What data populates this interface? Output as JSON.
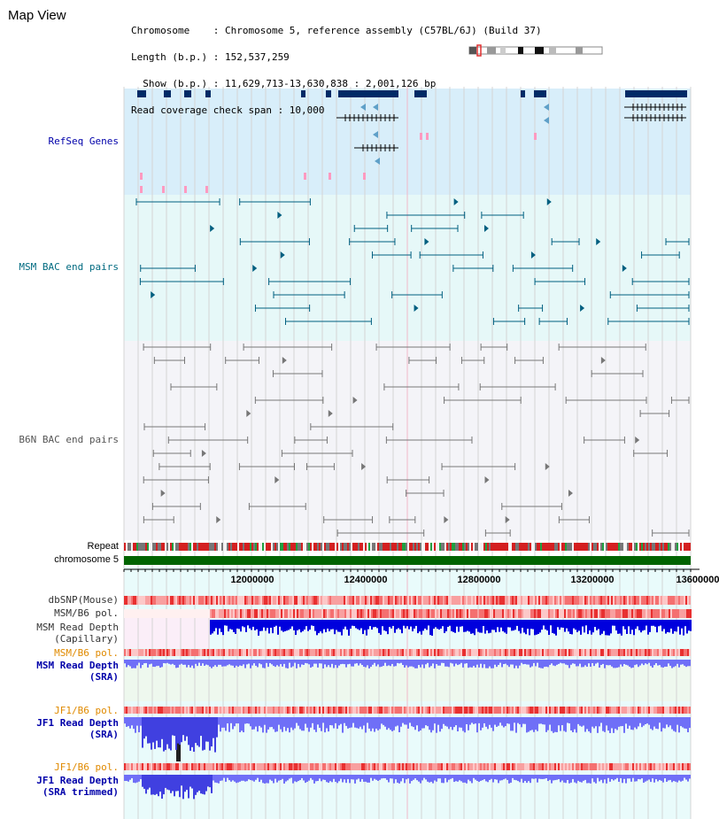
{
  "view_title": "Map View",
  "info_lines": [
    "Chromosome    : Chromosome 5, reference assembly (C57BL/6J) (Build 37)",
    "Length (b.p.) : 152,537,259",
    "  Show (b.p.) : 11,629,713-13,630,838 : 2,001,126 bp",
    "Read coverage check span : 10,000"
  ],
  "tracks": {
    "refseq": "RefSeq Genes",
    "msm_bac": "MSM BAC end pairs",
    "b6n_bac": "B6N BAC end pairs",
    "repeat": "Repeat",
    "chromosome": "chromosome 5",
    "dbsnp": "dbSNP(Mouse)",
    "msm_b6_pol": "MSM/B6 pol.",
    "msm_depth_cap": "MSM Read Depth\n(Capillary)",
    "msm_b6_pol_sra": "MSM/B6 pol.",
    "msm_depth_sra": "MSM Read Depth\n(SRA)",
    "jf1_b6_pol": "JF1/B6 pol.",
    "jf1_depth_sra": "JF1 Read Depth\n(SRA)",
    "jf1_b6_pol_trim": "JF1/B6 pol.",
    "jf1_depth_trim": "JF1 Read Depth\n(SRA trimmed)"
  },
  "axis": {
    "ticks": [
      "12000000",
      "12400000",
      "12800000",
      "13200000",
      "13600000"
    ]
  },
  "colors": {
    "refseq_bg": "#d8eefa",
    "msm_bg": "#e6f8f8",
    "b6n_bg": "#f4f4f8",
    "gene": "#002a66",
    "msm_pair": "#005f80",
    "b6n_pair": "#777777",
    "chromosome": "#006400",
    "depth": "#0000dd",
    "sra_depth": "#6f6ff7",
    "label_blue": "#0000aa",
    "label_teal": "#006a80",
    "label_orange": "#e08a00"
  }
}
